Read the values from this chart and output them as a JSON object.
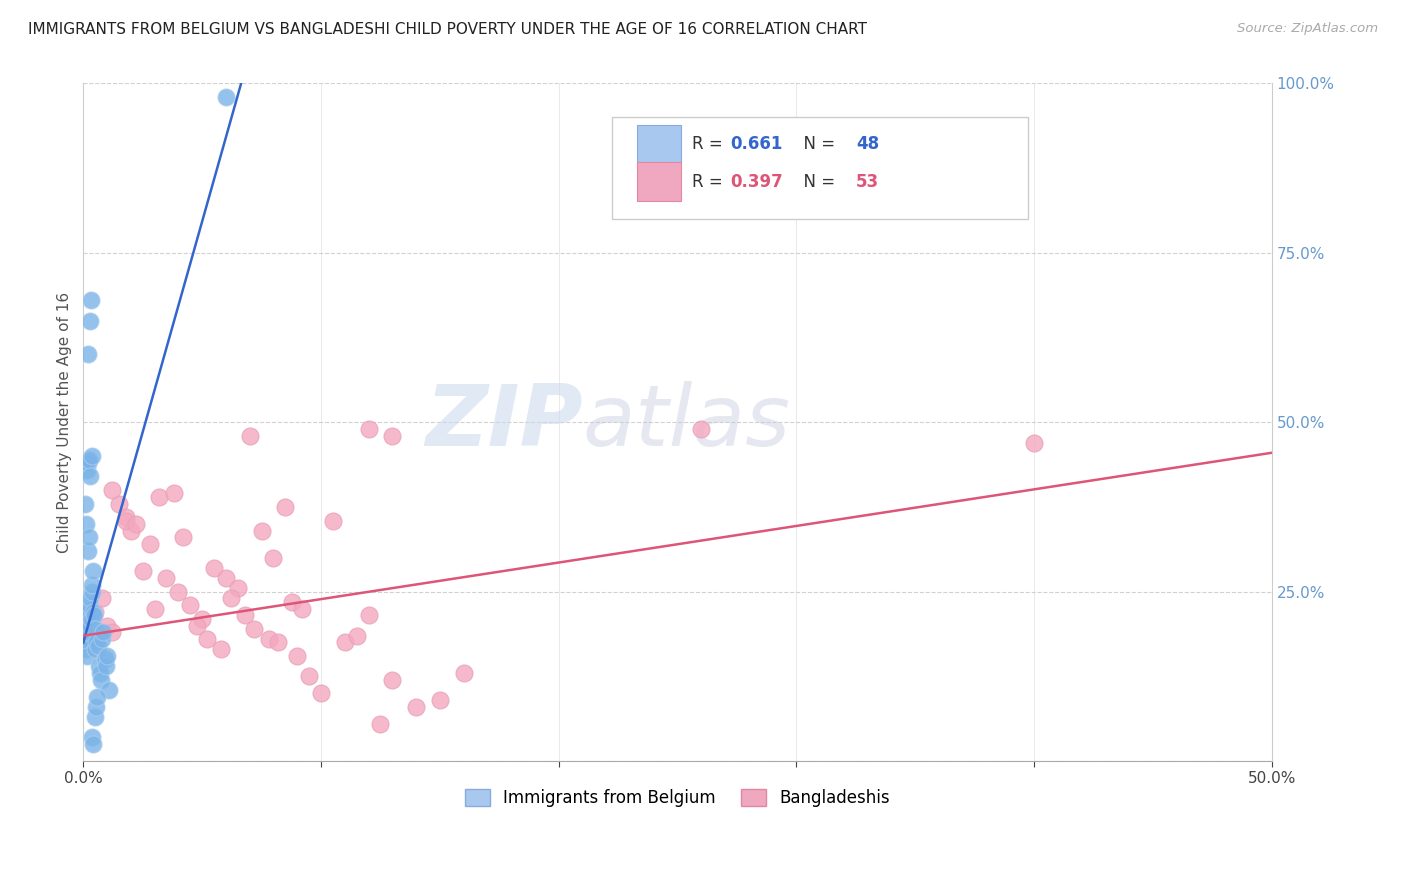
{
  "title": "IMMIGRANTS FROM BELGIUM VS BANGLADESHI CHILD POVERTY UNDER THE AGE OF 16 CORRELATION CHART",
  "source": "Source: ZipAtlas.com",
  "ylabel": "Child Poverty Under the Age of 16",
  "xmin": 0.0,
  "xmax": 0.5,
  "ymin": 0.0,
  "ymax": 1.0,
  "watermark_zip": "ZIP",
  "watermark_atlas": "atlas",
  "blue_scatter_x": [
    0.0005,
    0.0008,
    0.001,
    0.0012,
    0.0015,
    0.0018,
    0.002,
    0.0022,
    0.0025,
    0.0028,
    0.003,
    0.0032,
    0.0035,
    0.0038,
    0.004,
    0.0042,
    0.0045,
    0.0048,
    0.005,
    0.0055,
    0.006,
    0.0065,
    0.007,
    0.0075,
    0.008,
    0.0085,
    0.009,
    0.0095,
    0.01,
    0.011,
    0.0015,
    0.002,
    0.0025,
    0.003,
    0.0035,
    0.0008,
    0.0012,
    0.0018,
    0.0022,
    0.0028,
    0.0032,
    0.0038,
    0.0042,
    0.0048,
    0.0052,
    0.0058,
    0.06,
    0.002
  ],
  "blue_scatter_y": [
    0.195,
    0.185,
    0.175,
    0.165,
    0.155,
    0.205,
    0.215,
    0.22,
    0.23,
    0.24,
    0.2,
    0.21,
    0.25,
    0.26,
    0.28,
    0.22,
    0.215,
    0.195,
    0.165,
    0.175,
    0.17,
    0.14,
    0.13,
    0.12,
    0.18,
    0.19,
    0.15,
    0.14,
    0.155,
    0.105,
    0.43,
    0.44,
    0.445,
    0.42,
    0.45,
    0.38,
    0.35,
    0.31,
    0.33,
    0.65,
    0.68,
    0.035,
    0.025,
    0.065,
    0.08,
    0.095,
    0.98,
    0.6
  ],
  "pink_scatter_x": [
    0.005,
    0.008,
    0.01,
    0.012,
    0.015,
    0.018,
    0.02,
    0.025,
    0.03,
    0.035,
    0.04,
    0.045,
    0.05,
    0.055,
    0.06,
    0.065,
    0.07,
    0.075,
    0.08,
    0.085,
    0.09,
    0.095,
    0.1,
    0.105,
    0.11,
    0.115,
    0.12,
    0.125,
    0.13,
    0.14,
    0.012,
    0.018,
    0.022,
    0.028,
    0.032,
    0.038,
    0.042,
    0.048,
    0.052,
    0.058,
    0.062,
    0.068,
    0.072,
    0.078,
    0.082,
    0.088,
    0.092,
    0.13,
    0.4,
    0.15,
    0.16,
    0.26,
    0.12
  ],
  "pink_scatter_y": [
    0.22,
    0.24,
    0.2,
    0.19,
    0.38,
    0.36,
    0.34,
    0.28,
    0.225,
    0.27,
    0.25,
    0.23,
    0.21,
    0.285,
    0.27,
    0.255,
    0.48,
    0.34,
    0.3,
    0.375,
    0.155,
    0.125,
    0.1,
    0.355,
    0.175,
    0.185,
    0.215,
    0.055,
    0.12,
    0.08,
    0.4,
    0.355,
    0.35,
    0.32,
    0.39,
    0.395,
    0.33,
    0.2,
    0.18,
    0.165,
    0.24,
    0.215,
    0.195,
    0.18,
    0.175,
    0.235,
    0.225,
    0.48,
    0.47,
    0.09,
    0.13,
    0.49,
    0.49
  ],
  "blue_line_x": [
    0.0,
    0.068
  ],
  "blue_line_y": [
    0.175,
    1.02
  ],
  "pink_line_x": [
    0.0,
    0.5
  ],
  "pink_line_y": [
    0.185,
    0.455
  ],
  "blue_dot_color": "#7ab3e8",
  "blue_dot_edge": "#a8ccee",
  "pink_dot_color": "#f4a8c0",
  "pink_dot_edge": "#e8a0b8",
  "blue_line_color": "#3366cc",
  "pink_line_color": "#dd5577",
  "background_color": "#ffffff",
  "grid_color": "#cccccc",
  "title_color": "#222222",
  "source_color": "#aaaaaa",
  "right_tick_color": "#6699cc",
  "ylabel_color": "#555555",
  "legend_blue_face": "#a8c8f0",
  "legend_blue_edge": "#88aadd",
  "legend_pink_face": "#f0a8c0",
  "legend_pink_edge": "#e088a0",
  "legend_r_blue": "#3366cc",
  "legend_r_pink": "#dd5577",
  "legend_n_blue": "#3366cc",
  "legend_n_pink": "#dd5577"
}
